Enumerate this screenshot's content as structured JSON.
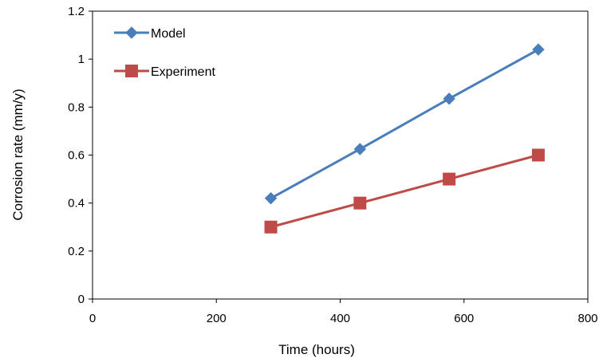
{
  "chart_data": {
    "type": "line",
    "xlabel": "Time (hours)",
    "ylabel": "Corrosion rate (mm/y)",
    "xlim": [
      0,
      800
    ],
    "ylim": [
      0,
      1.2
    ],
    "xticks": [
      "0",
      "200",
      "400",
      "600",
      "800"
    ],
    "yticks": [
      "0",
      "0.2",
      "0.4",
      "0.6",
      "0.8",
      "1",
      "1.2"
    ],
    "grid": false,
    "legend_position": "top-left",
    "series": [
      {
        "name": "Model",
        "color": "#4A7EBB",
        "marker": "diamond",
        "x": [
          288,
          432,
          576,
          720
        ],
        "y": [
          0.42,
          0.625,
          0.835,
          1.04
        ]
      },
      {
        "name": "Experiment",
        "color": "#BE4B48",
        "marker": "square",
        "x": [
          288,
          432,
          576,
          720
        ],
        "y": [
          0.3,
          0.4,
          0.5,
          0.6
        ]
      }
    ]
  }
}
